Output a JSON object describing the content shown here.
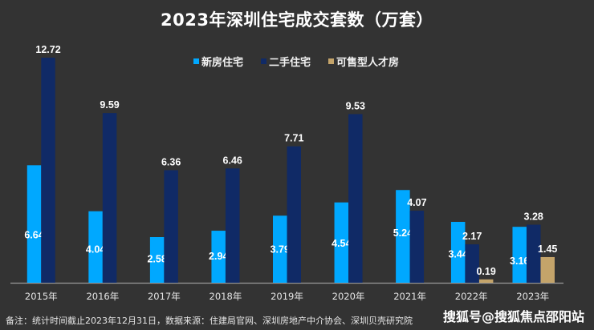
{
  "chart_data": {
    "type": "bar",
    "title": "2023年深圳住宅成交套数（万套）",
    "xlabel": "",
    "ylabel": "",
    "ylim": [
      0,
      12.72
    ],
    "grid": false,
    "legend_position": "top-right",
    "categories": [
      "2015年",
      "2016年",
      "2017年",
      "2018年",
      "2019年",
      "2020年",
      "2021年",
      "2022年",
      "2023年"
    ],
    "series": [
      {
        "name": "新房住宅",
        "color": "#00a8ff",
        "values": [
          6.64,
          4.04,
          2.58,
          2.94,
          3.79,
          4.54,
          5.24,
          3.44,
          3.16
        ]
      },
      {
        "name": "二手住宅",
        "color": "#102a66",
        "values": [
          12.72,
          9.59,
          6.36,
          6.46,
          7.71,
          9.53,
          4.07,
          2.17,
          3.28
        ]
      },
      {
        "name": "可售型人才房",
        "color": "#c4a46a",
        "values": [
          null,
          null,
          null,
          null,
          null,
          null,
          null,
          0.19,
          1.45
        ]
      }
    ]
  },
  "colors": {
    "background": "#333333",
    "axis": "#999999",
    "text": "#ffffff"
  },
  "footnote": "备注：统计时间截止2023年12月31日，数据来源：住建局官网、深圳房地产中介协会、深圳贝壳研究院",
  "watermark": "搜狐号@搜狐焦点邵阳站"
}
